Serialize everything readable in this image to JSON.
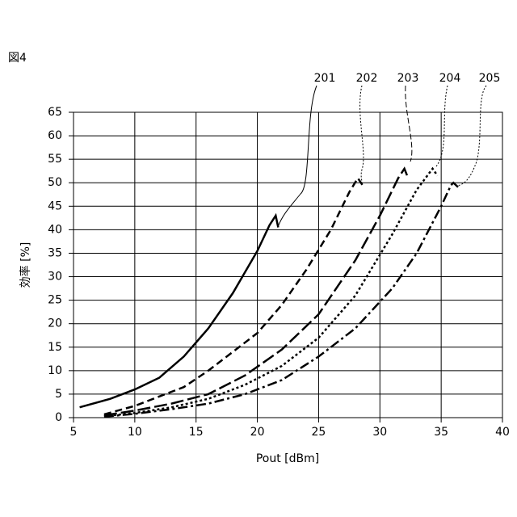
{
  "chart_data": {
    "type": "line",
    "title": "図4",
    "x_label": "Pout [dBm]",
    "y_label": "効率 [%]",
    "xlim": [
      5,
      40
    ],
    "xticks": [
      5,
      10,
      15,
      20,
      25,
      30,
      35,
      40
    ],
    "ylim": [
      0,
      65
    ],
    "yticks": [
      0,
      5,
      10,
      15,
      20,
      25,
      30,
      35,
      40,
      45,
      50,
      55,
      60,
      65
    ],
    "grid": true,
    "series": [
      {
        "name": "201",
        "color": "#000000",
        "dash": "solid",
        "x": [
          5.5,
          8,
          10,
          12,
          14,
          16,
          18,
          20,
          21,
          21.5,
          21.7
        ],
        "values": [
          2.2,
          4,
          6,
          8.5,
          13,
          19,
          26.5,
          35.5,
          41,
          43,
          40.5
        ]
      },
      {
        "name": "202",
        "color": "#000000",
        "dash": "dash",
        "x": [
          7.5,
          10,
          12,
          14,
          16,
          18,
          20,
          22,
          24,
          26,
          27.5,
          28.2,
          28.7
        ],
        "values": [
          0.7,
          2.5,
          4.5,
          6.5,
          10,
          14,
          18,
          24,
          31.5,
          40,
          48,
          51,
          49
        ]
      },
      {
        "name": "203",
        "color": "#000000",
        "dash": "longdash",
        "x": [
          7.5,
          10,
          13,
          16,
          19,
          22,
          25,
          28,
          30,
          31.5,
          32,
          32.3
        ],
        "values": [
          0.5,
          1.5,
          3,
          5,
          9,
          14.5,
          22,
          33.5,
          43,
          51,
          53,
          51
        ]
      },
      {
        "name": "204",
        "color": "#000000",
        "dash": "dot",
        "x": [
          7.5,
          10,
          13,
          16,
          19,
          22,
          25,
          28,
          31,
          33,
          34.3,
          34.7
        ],
        "values": [
          0.3,
          1,
          2.2,
          4,
          7,
          11,
          17,
          26,
          39,
          48.5,
          53,
          51.5
        ]
      },
      {
        "name": "205",
        "color": "#000000",
        "dash": "dashdot",
        "x": [
          7.5,
          10,
          13,
          16,
          19,
          22,
          25,
          28,
          31,
          33,
          35,
          35.8,
          36,
          36.4
        ],
        "values": [
          0.2,
          0.8,
          1.8,
          3,
          5,
          8,
          13,
          19,
          27.5,
          35,
          45,
          49.5,
          50,
          49
        ]
      }
    ]
  }
}
